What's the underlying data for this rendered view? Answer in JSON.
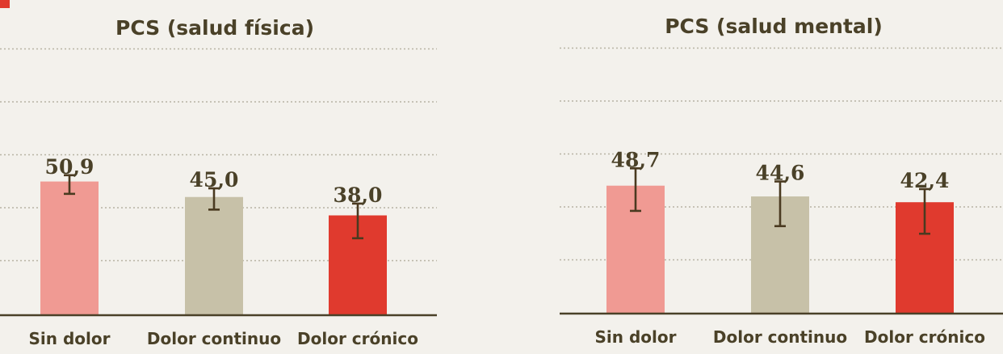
{
  "colors": {
    "background": "#f3f1ec",
    "accent": "#e03a2e",
    "text": "#4a4128",
    "grid": "#b8b3a4",
    "axis": "#4a4128"
  },
  "chart_data": [
    {
      "type": "bar",
      "title": "PCS (salud física)",
      "categories": [
        "Sin dolor",
        "Dolor continuo",
        "Dolor crónico"
      ],
      "values": [
        50.9,
        45.0,
        38.0
      ],
      "value_labels": [
        "50,9",
        "45,0",
        "38,0"
      ],
      "error_low": [
        46.2,
        40.2,
        29.3
      ],
      "error_high": [
        53.3,
        48.3,
        42.5
      ],
      "bar_colors": [
        "#f09a93",
        "#c7c1a8",
        "#e03a2e"
      ],
      "ylim": [
        0,
        60
      ],
      "grid": true
    },
    {
      "type": "bar",
      "title": "PCS (salud mental)",
      "categories": [
        "Sin dolor",
        "Dolor continuo",
        "Dolor crónico"
      ],
      "values": [
        48.7,
        44.6,
        42.4
      ],
      "value_labels": [
        "48,7",
        "44,6",
        "42,4"
      ],
      "error_low": [
        39.1,
        33.3,
        30.4
      ],
      "error_high": [
        55.3,
        50.3,
        47.4
      ],
      "bar_colors": [
        "#f09a93",
        "#c7c1a8",
        "#e03a2e"
      ],
      "ylim": [
        0,
        60
      ],
      "grid": true
    }
  ]
}
